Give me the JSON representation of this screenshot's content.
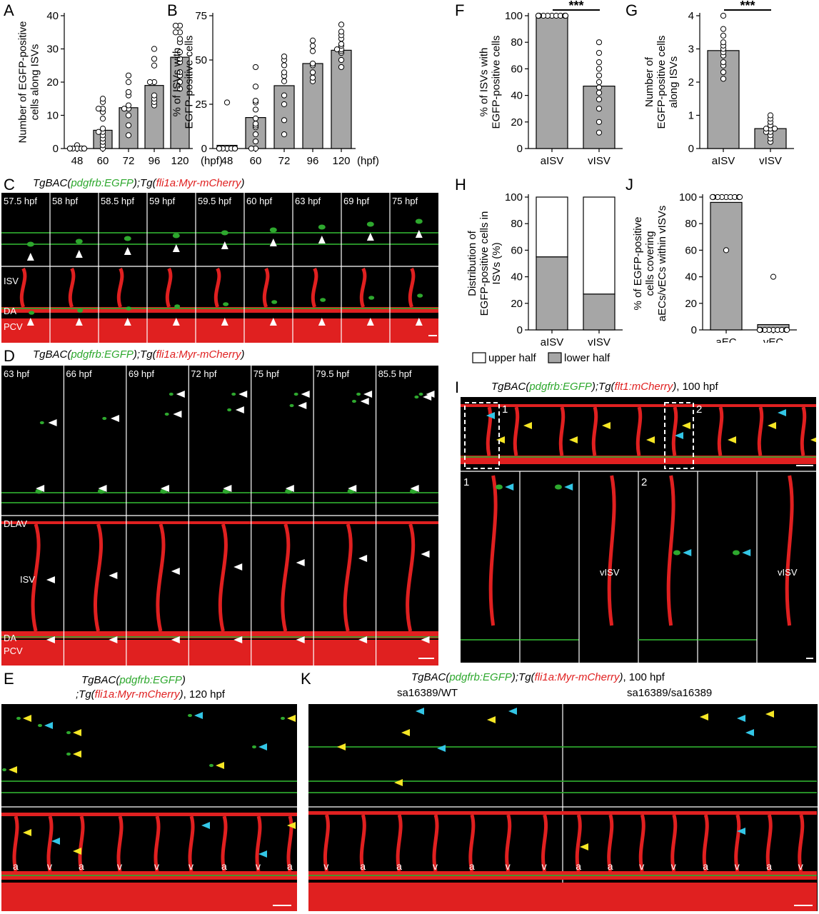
{
  "panels": {
    "A": {
      "label": "A",
      "ylabel": "Number of EGFP-positive cells along ISVs",
      "xunit": "(hpf)"
    },
    "B": {
      "label": "B",
      "ylabel": "% of ISVs with EGFP-positive cells",
      "xunit": "(hpf)"
    },
    "F": {
      "label": "F",
      "ylabel": "% of ISVs with EGFP-positive cells",
      "significance": "***"
    },
    "G": {
      "label": "G",
      "ylabel": "Number of EGFP-positive cells along ISVs",
      "significance": "***"
    },
    "H": {
      "label": "H",
      "ylabel": "Distribution of EGFP-positive cells in ISVs (%)",
      "legend": [
        "upper half",
        "lower half"
      ]
    },
    "J": {
      "label": "J",
      "ylabel": "% of EGFP-positive cells covering aECs/vECs within vISVs"
    },
    "C": {
      "label": "C",
      "caption_g": "pdgfrb:EGFP",
      "caption_r": "fli1a:Myr-mCherry",
      "frames": [
        "57.5 hpf",
        "58 hpf",
        "58.5 hpf",
        "59 hpf",
        "59.5 hpf",
        "60 hpf",
        "63 hpf",
        "69 hpf",
        "75 hpf"
      ],
      "vessel_labels": [
        "ISV",
        "DA",
        "PCV"
      ]
    },
    "D": {
      "label": "D",
      "caption_g": "pdgfrb:EGFP",
      "caption_r": "fli1a:Myr-mCherry",
      "frames": [
        "63 hpf",
        "66 hpf",
        "69 hpf",
        "72 hpf",
        "75 hpf",
        "79.5 hpf",
        "85.5 hpf"
      ],
      "vessel_labels": [
        "DLAV",
        "ISV",
        "DA",
        "PCV"
      ]
    },
    "E": {
      "label": "E",
      "caption_g": "pdgfrb:EGFP",
      "caption_r": "fli1a:Myr-mCherry",
      "stage": ", 120 hpf",
      "av_labels": [
        "a",
        "v",
        "a",
        "v",
        "v",
        "v",
        "a",
        "v",
        "a"
      ]
    },
    "I": {
      "label": "I",
      "caption_g": "pdgfrb:EGFP",
      "caption_r": "flt1:mCherry",
      "stage": ", 100 hpf",
      "box1": "1",
      "box2": "2",
      "vlabel": "vISV"
    },
    "K": {
      "label": "K",
      "caption_g": "pdgfrb:EGFP",
      "caption_r": "fli1a:Myr-mCherry",
      "stage": ", 100 hpf",
      "genotypes": [
        "sa16389/WT",
        "sa16389/sa16389"
      ],
      "av_labels_left": [
        "v",
        "a",
        "a",
        "v",
        "a",
        "v",
        "v"
      ],
      "av_labels_right": [
        "a",
        "a",
        "v",
        "v",
        "a",
        "v",
        "a",
        "v"
      ]
    }
  },
  "chart_data": [
    {
      "panel": "A",
      "type": "bar",
      "categories": [
        "48",
        "60",
        "72",
        "96",
        "120"
      ],
      "values": [
        0.3,
        5.5,
        12.3,
        19,
        27.5
      ],
      "ylim": [
        0,
        40
      ],
      "yticks": [
        0,
        10,
        20,
        30,
        40
      ],
      "points": [
        [
          1,
          0,
          0,
          0,
          0,
          0,
          0,
          0,
          0,
          0
        ],
        [
          0,
          1,
          2,
          3,
          4,
          5,
          5,
          6,
          9,
          11,
          12,
          12,
          14,
          15
        ],
        [
          4,
          7,
          10,
          12,
          12,
          13,
          16,
          17,
          20,
          22
        ],
        [
          13,
          14,
          15,
          16,
          20,
          20,
          25,
          27,
          30
        ],
        [
          18,
          20,
          22,
          23,
          26,
          27,
          29,
          32,
          33,
          35,
          35,
          37,
          37
        ]
      ]
    },
    {
      "panel": "B",
      "type": "bar",
      "categories": [
        "48",
        "60",
        "72",
        "96",
        "120"
      ],
      "values": [
        1.8,
        17.5,
        35.5,
        48,
        55.5
      ],
      "ylim": [
        0,
        75
      ],
      "yticks": [
        0,
        25,
        50,
        75
      ],
      "points": [
        [
          0,
          0,
          0,
          0,
          0,
          0,
          0,
          0,
          0,
          26
        ],
        [
          0,
          0,
          4,
          8,
          12,
          13,
          14,
          17,
          22,
          26,
          27,
          35,
          46
        ],
        [
          8,
          16,
          25,
          30,
          38,
          41,
          43,
          47,
          50,
          52
        ],
        [
          38,
          40,
          43,
          47,
          48,
          55,
          58,
          61
        ],
        [
          46,
          50,
          54,
          55,
          56,
          56,
          58,
          59,
          62,
          64,
          66,
          70
        ]
      ]
    },
    {
      "panel": "F",
      "type": "bar",
      "categories": [
        "aISV",
        "vISV"
      ],
      "values": [
        100,
        47
      ],
      "ylim": [
        0,
        100
      ],
      "yticks": [
        0,
        20,
        40,
        60,
        80,
        100
      ],
      "points": [
        [
          100,
          100,
          100,
          100,
          100,
          100,
          100,
          100,
          100,
          100,
          100,
          100
        ],
        [
          12,
          20,
          30,
          37,
          42,
          46,
          50,
          55,
          60,
          65,
          72,
          80
        ]
      ]
    },
    {
      "panel": "G",
      "type": "bar",
      "categories": [
        "aISV",
        "vISV"
      ],
      "values": [
        2.95,
        0.6
      ],
      "ylim": [
        0,
        4
      ],
      "yticks": [
        0,
        1,
        2,
        3,
        4
      ],
      "points": [
        [
          2.1,
          2.3,
          2.5,
          2.6,
          2.8,
          2.9,
          3.0,
          3.1,
          3.2,
          3.4,
          3.6,
          4.0
        ],
        [
          0.2,
          0.3,
          0.4,
          0.5,
          0.5,
          0.6,
          0.6,
          0.6,
          0.7,
          0.8,
          0.9,
          1.0
        ]
      ]
    },
    {
      "panel": "H",
      "type": "bar",
      "stacked": true,
      "categories": [
        "aISV",
        "vISV"
      ],
      "series": [
        {
          "name": "lower half",
          "values": [
            55,
            27
          ]
        },
        {
          "name": "upper half",
          "values": [
            45,
            73
          ]
        }
      ],
      "ylim": [
        0,
        100
      ],
      "yticks": [
        0,
        20,
        40,
        60,
        80,
        100
      ]
    },
    {
      "panel": "J",
      "type": "bar",
      "categories": [
        "aEC",
        "vEC"
      ],
      "values": [
        96,
        4
      ],
      "ylim": [
        0,
        100
      ],
      "yticks": [
        0,
        20,
        40,
        60,
        80,
        100
      ],
      "points": [
        [
          100,
          100,
          100,
          100,
          100,
          100,
          100,
          100,
          100,
          100,
          60
        ],
        [
          0,
          0,
          0,
          0,
          0,
          0,
          0,
          0,
          0,
          0,
          40
        ]
      ]
    }
  ],
  "colors": {
    "bar": "#a6a6a6",
    "egfp": "#2ea82e",
    "mcherry": "#e02020",
    "arrow_white": "#ffffff",
    "arrow_yellow": "#f5e625",
    "arrow_cyan": "#33c6e6"
  }
}
